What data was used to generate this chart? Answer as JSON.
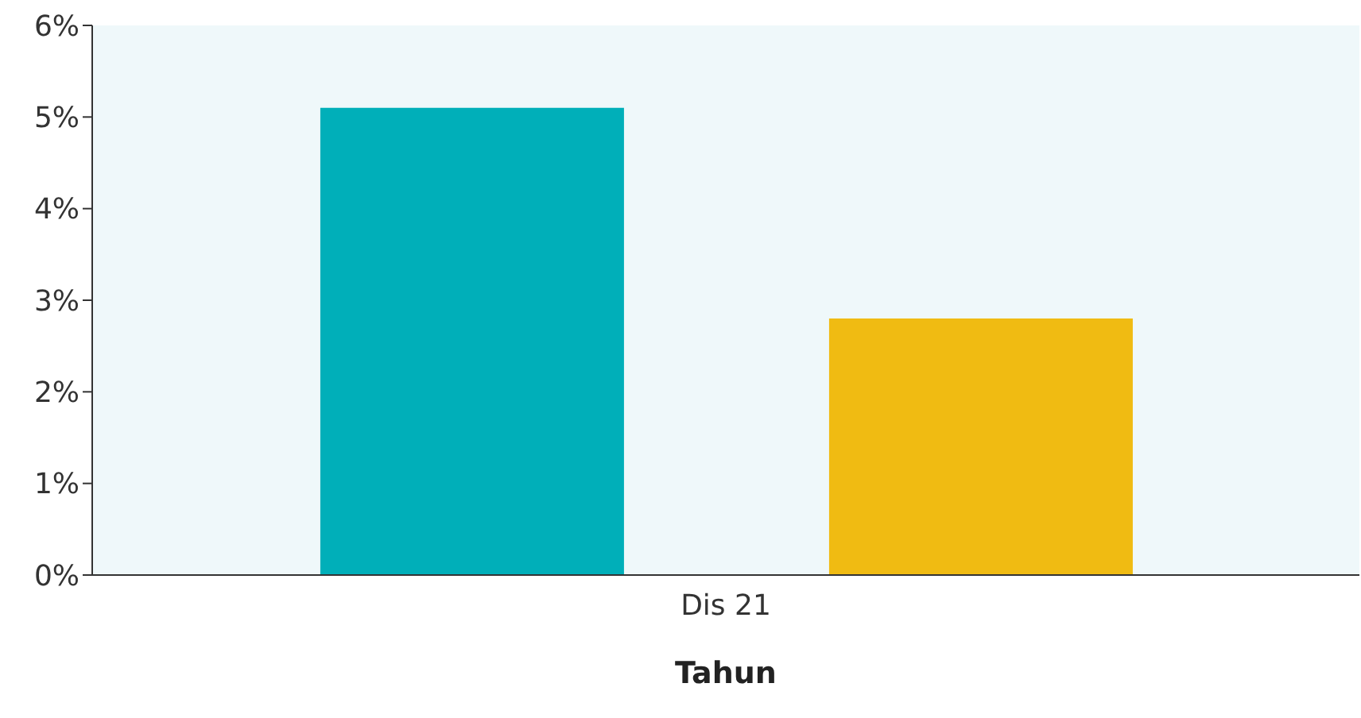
{
  "chart_data": {
    "type": "bar",
    "xlabel": "Tahun",
    "categories": [
      "Dis 21"
    ],
    "series": [
      {
        "color": "#00afb9",
        "values": [
          5.1
        ]
      },
      {
        "color": "#f0bb12",
        "values": [
          2.8
        ]
      }
    ],
    "ylim": [
      0,
      6
    ],
    "yticks": [
      {
        "value": 0,
        "label": "0%"
      },
      {
        "value": 1,
        "label": "1%"
      },
      {
        "value": 2,
        "label": "2%"
      },
      {
        "value": 3,
        "label": "3%"
      },
      {
        "value": 4,
        "label": "4%"
      },
      {
        "value": 5,
        "label": "5%"
      },
      {
        "value": 6,
        "label": "6%"
      }
    ],
    "grid": false,
    "legend": false
  }
}
